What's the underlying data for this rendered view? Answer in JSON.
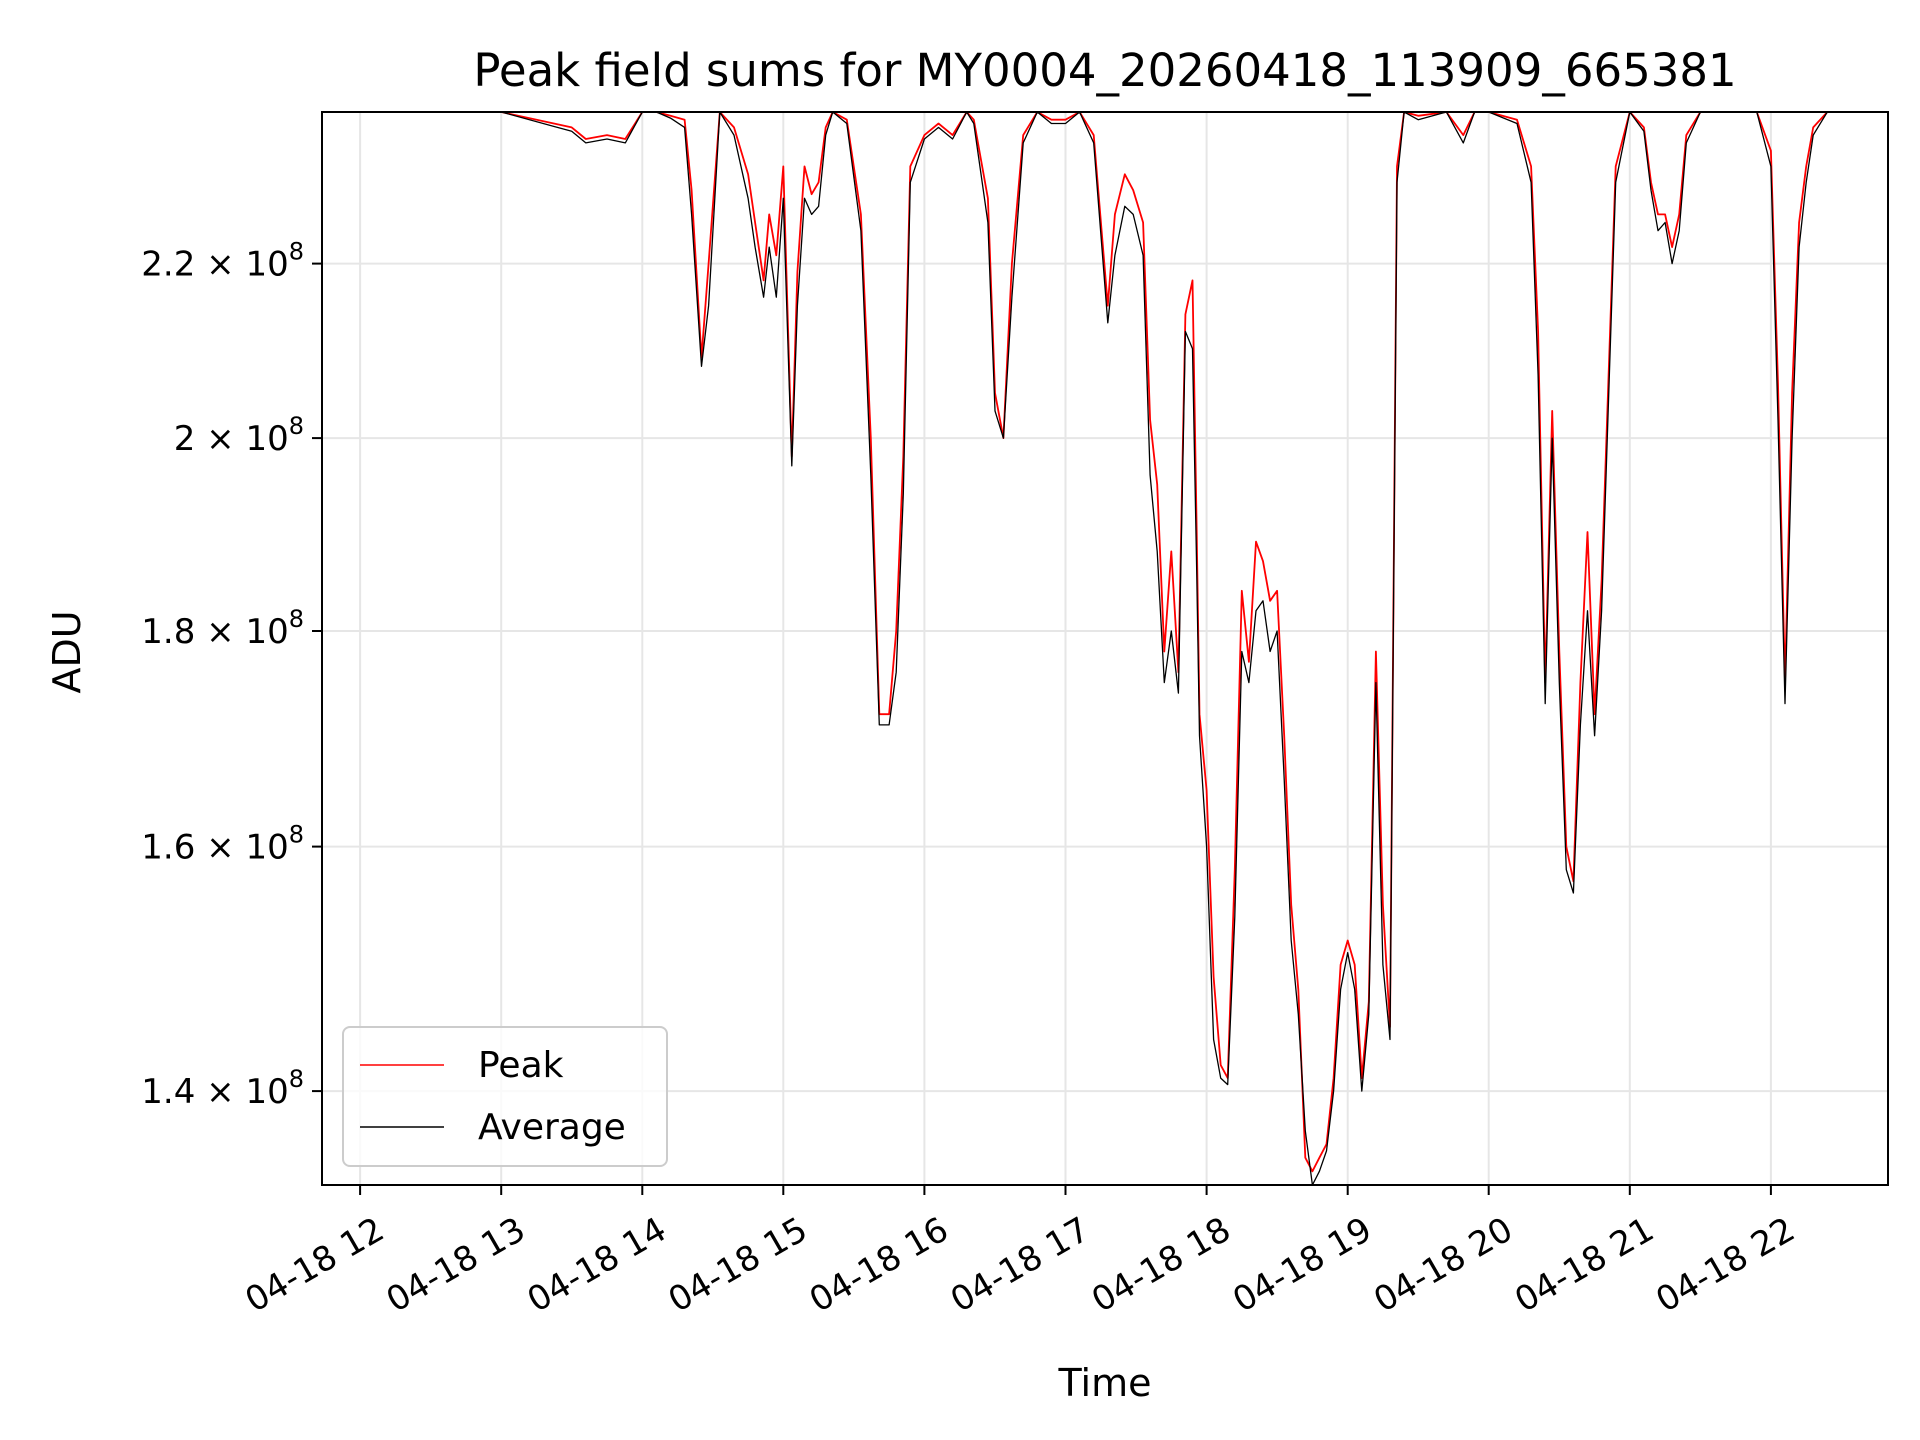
{
  "chart_data": {
    "type": "line",
    "title": "Peak field sums for MY0004_20260418_113909_665381",
    "xlabel": "Time",
    "ylabel": "ADU",
    "grid": true,
    "legend_position": "lower-left",
    "xlim": [
      11.73,
      22.83
    ],
    "ylim": [
      133000000,
      239000000
    ],
    "yscale": "log",
    "x_ticks": [
      {
        "value": 12,
        "label": "04-18 12"
      },
      {
        "value": 13,
        "label": "04-18 13"
      },
      {
        "value": 14,
        "label": "04-18 14"
      },
      {
        "value": 15,
        "label": "04-18 15"
      },
      {
        "value": 16,
        "label": "04-18 16"
      },
      {
        "value": 17,
        "label": "04-18 17"
      },
      {
        "value": 18,
        "label": "04-18 18"
      },
      {
        "value": 19,
        "label": "04-18 19"
      },
      {
        "value": 20,
        "label": "04-18 20"
      },
      {
        "value": 21,
        "label": "04-18 21"
      },
      {
        "value": 22,
        "label": "04-18 22"
      }
    ],
    "y_ticks": [
      {
        "value": 140000000,
        "mantissa": "1.4",
        "base": "10",
        "exp": "8"
      },
      {
        "value": 160000000,
        "mantissa": "1.6",
        "base": "10",
        "exp": "8"
      },
      {
        "value": 180000000,
        "mantissa": "1.8",
        "base": "10",
        "exp": "8"
      },
      {
        "value": 200000000,
        "mantissa": "2",
        "base": "10",
        "exp": "8"
      },
      {
        "value": 220000000,
        "mantissa": "2.2",
        "base": "10",
        "exp": "8"
      }
    ],
    "series": [
      {
        "name": "Peak",
        "color": "#ff0000",
        "x": [
          11.73,
          12.5,
          13.0,
          13.5,
          13.6,
          13.75,
          13.88,
          14.0,
          14.1,
          14.2,
          14.3,
          14.35,
          14.42,
          14.47,
          14.55,
          14.65,
          14.75,
          14.8,
          14.86,
          14.9,
          14.95,
          15.0,
          15.06,
          15.1,
          15.15,
          15.2,
          15.25,
          15.3,
          15.35,
          15.45,
          15.55,
          15.62,
          15.68,
          15.75,
          15.8,
          15.85,
          15.9,
          16.0,
          16.1,
          16.2,
          16.3,
          16.35,
          16.45,
          16.5,
          16.56,
          16.62,
          16.7,
          16.8,
          16.9,
          17.0,
          17.1,
          17.2,
          17.3,
          17.35,
          17.42,
          17.48,
          17.55,
          17.6,
          17.65,
          17.7,
          17.75,
          17.8,
          17.85,
          17.9,
          17.93,
          17.95,
          18.0,
          18.05,
          18.1,
          18.15,
          18.2,
          18.25,
          18.3,
          18.35,
          18.4,
          18.45,
          18.5,
          18.55,
          18.6,
          18.65,
          18.7,
          18.75,
          18.8,
          18.85,
          18.9,
          18.95,
          19.0,
          19.05,
          19.1,
          19.15,
          19.2,
          19.25,
          19.3,
          19.35,
          19.4,
          19.5,
          19.7,
          19.82,
          19.9,
          20.0,
          20.2,
          20.3,
          20.35,
          20.4,
          20.45,
          20.5,
          20.55,
          20.6,
          20.65,
          20.7,
          20.75,
          20.8,
          20.9,
          21.0,
          21.1,
          21.15,
          21.2,
          21.25,
          21.3,
          21.35,
          21.4,
          21.5,
          21.7,
          21.9,
          22.0,
          22.05,
          22.1,
          22.15,
          22.2,
          22.25,
          22.3,
          22.4,
          22.83
        ],
        "y": [
          239000000,
          239000000,
          239000000,
          237000000,
          235500000,
          236000000,
          235500000,
          239000000,
          239000000,
          238500000,
          238000000,
          229000000,
          209000000,
          220000000,
          239000000,
          237000000,
          231000000,
          225000000,
          218000000,
          226000000,
          221000000,
          232000000,
          198000000,
          219000000,
          232000000,
          228500000,
          230000000,
          237000000,
          239000000,
          238000000,
          226000000,
          200000000,
          172000000,
          172000000,
          180000000,
          198000000,
          232000000,
          236000000,
          237500000,
          236000000,
          239000000,
          238000000,
          228000000,
          205000000,
          200000000,
          220000000,
          236000000,
          239000000,
          238000000,
          238000000,
          239000000,
          236000000,
          215000000,
          226000000,
          231000000,
          229000000,
          225000000,
          202000000,
          195000000,
          178000000,
          188000000,
          176000000,
          214000000,
          218000000,
          190000000,
          172000000,
          165000000,
          149000000,
          142000000,
          141000000,
          158000000,
          184000000,
          177000000,
          189000000,
          187000000,
          183000000,
          184000000,
          170000000,
          155000000,
          148000000,
          135000000,
          134000000,
          135000000,
          136000000,
          141000000,
          150000000,
          152000000,
          150000000,
          141000000,
          147000000,
          178000000,
          155000000,
          145000000,
          232000000,
          239000000,
          238500000,
          239000000,
          236000000,
          239000000,
          239000000,
          238000000,
          232000000,
          212000000,
          175000000,
          203000000,
          178000000,
          160000000,
          157000000,
          175000000,
          190000000,
          172000000,
          185000000,
          232000000,
          239000000,
          237000000,
          230000000,
          226000000,
          226000000,
          222000000,
          226000000,
          236000000,
          239000000,
          239000000,
          239000000,
          234000000,
          206000000,
          175000000,
          205000000,
          225000000,
          232000000,
          237000000,
          239000000,
          239000000
        ]
      },
      {
        "name": "Average",
        "color": "#000000",
        "x": [
          11.73,
          12.5,
          13.0,
          13.5,
          13.6,
          13.75,
          13.88,
          14.0,
          14.1,
          14.2,
          14.3,
          14.35,
          14.42,
          14.47,
          14.55,
          14.65,
          14.75,
          14.8,
          14.86,
          14.9,
          14.95,
          15.0,
          15.06,
          15.1,
          15.15,
          15.2,
          15.25,
          15.3,
          15.35,
          15.45,
          15.55,
          15.62,
          15.68,
          15.75,
          15.8,
          15.85,
          15.9,
          16.0,
          16.1,
          16.2,
          16.3,
          16.35,
          16.45,
          16.5,
          16.56,
          16.62,
          16.7,
          16.8,
          16.9,
          17.0,
          17.1,
          17.2,
          17.3,
          17.35,
          17.42,
          17.48,
          17.55,
          17.6,
          17.65,
          17.7,
          17.75,
          17.8,
          17.85,
          17.9,
          17.93,
          17.95,
          18.0,
          18.05,
          18.1,
          18.15,
          18.2,
          18.25,
          18.3,
          18.35,
          18.4,
          18.45,
          18.5,
          18.55,
          18.6,
          18.65,
          18.7,
          18.75,
          18.8,
          18.85,
          18.9,
          18.95,
          19.0,
          19.05,
          19.1,
          19.15,
          19.2,
          19.25,
          19.3,
          19.35,
          19.4,
          19.5,
          19.7,
          19.82,
          19.9,
          20.0,
          20.2,
          20.3,
          20.35,
          20.4,
          20.45,
          20.5,
          20.55,
          20.6,
          20.65,
          20.7,
          20.75,
          20.8,
          20.9,
          21.0,
          21.1,
          21.15,
          21.2,
          21.25,
          21.3,
          21.35,
          21.4,
          21.5,
          21.7,
          21.9,
          22.0,
          22.05,
          22.1,
          22.15,
          22.2,
          22.25,
          22.3,
          22.4,
          22.83
        ],
        "y": [
          239000000,
          239000000,
          239000000,
          236500000,
          235000000,
          235500000,
          235000000,
          239000000,
          239000000,
          238200000,
          237000000,
          226000000,
          208000000,
          215000000,
          239000000,
          236000000,
          228000000,
          222000000,
          216000000,
          222000000,
          216000000,
          228000000,
          197000000,
          215000000,
          228000000,
          226000000,
          227000000,
          236000000,
          239000000,
          237500000,
          224000000,
          196000000,
          171000000,
          171000000,
          176000000,
          194000000,
          230000000,
          235500000,
          237000000,
          235500000,
          239000000,
          237500000,
          225000000,
          203000000,
          200000000,
          216000000,
          235000000,
          239000000,
          237500000,
          237500000,
          239000000,
          235000000,
          213000000,
          221000000,
          227000000,
          226000000,
          221000000,
          196000000,
          188000000,
          175000000,
          180000000,
          174000000,
          212000000,
          210000000,
          186000000,
          170000000,
          160000000,
          144000000,
          141000000,
          140500000,
          154000000,
          178000000,
          175000000,
          182000000,
          183000000,
          178000000,
          180000000,
          166000000,
          152000000,
          146000000,
          137000000,
          133000000,
          134000000,
          135500000,
          140000000,
          148000000,
          151000000,
          148000000,
          140000000,
          146000000,
          175000000,
          150000000,
          144000000,
          230000000,
          239000000,
          238000000,
          239000000,
          235000000,
          239000000,
          239000000,
          237500000,
          230000000,
          207000000,
          173000000,
          200000000,
          175000000,
          158000000,
          156000000,
          171000000,
          182000000,
          170000000,
          182000000,
          230000000,
          239000000,
          236500000,
          229000000,
          224000000,
          225000000,
          220000000,
          224000000,
          235000000,
          239000000,
          239000000,
          239000000,
          232000000,
          202000000,
          173000000,
          200000000,
          222000000,
          230000000,
          236000000,
          239000000,
          239000000
        ]
      }
    ]
  }
}
